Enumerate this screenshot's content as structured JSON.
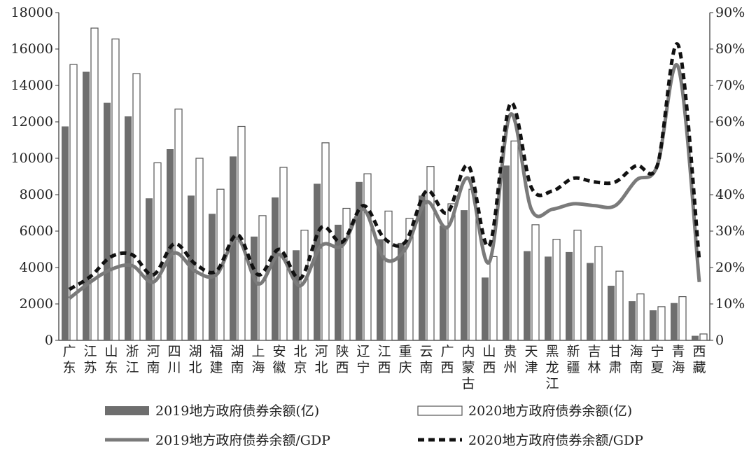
{
  "chart_data": {
    "type": "bar",
    "categories": [
      "广东",
      "江苏",
      "山东",
      "浙江",
      "河南",
      "四川",
      "湖北",
      "福建",
      "湖南",
      "上海",
      "安徽",
      "北京",
      "河北",
      "陕西",
      "辽宁",
      "江西",
      "重庆",
      "云南",
      "广西",
      "内蒙古",
      "山西",
      "贵州",
      "天津",
      "黑龙江",
      "新疆",
      "吉林",
      "甘肃",
      "海南",
      "宁夏",
      "青海",
      "西藏"
    ],
    "series": [
      {
        "name": "2019地方政府债券余额(亿)",
        "kind": "bar",
        "axis": "left",
        "color": "#6e6e6e",
        "values": [
          11750,
          14750,
          13050,
          12300,
          7800,
          10500,
          7950,
          6950,
          10100,
          5700,
          7850,
          4950,
          8600,
          6350,
          8700,
          5550,
          5350,
          7950,
          6300,
          7150,
          3450,
          9600,
          4900,
          4600,
          4850,
          4250,
          3000,
          2150,
          1650,
          2050,
          250
        ]
      },
      {
        "name": "2020地方政府债券余额(亿)",
        "kind": "bar",
        "axis": "left",
        "color": "#ffffff",
        "values": [
          15150,
          17150,
          16550,
          14650,
          9750,
          12700,
          10000,
          8300,
          11750,
          6850,
          9500,
          6050,
          10850,
          7250,
          9150,
          7100,
          6700,
          9550,
          7500,
          8300,
          4600,
          10950,
          6350,
          5550,
          6050,
          5150,
          3800,
          2550,
          1850,
          2400,
          350
        ]
      },
      {
        "name": "2019地方政府债券余额/GDP",
        "kind": "line",
        "axis": "right",
        "color": "#7a7a7a",
        "values": [
          11.5,
          16,
          19.5,
          20.5,
          16,
          24,
          19,
          18,
          28,
          15.5,
          23.5,
          15,
          26,
          26,
          36,
          22.5,
          25,
          38,
          31,
          44.5,
          21.5,
          62,
          36,
          36,
          37.5,
          37,
          37,
          44,
          48,
          75,
          16
        ]
      },
      {
        "name": "2020地方政府债券余额/GDP",
        "kind": "line",
        "axis": "right",
        "color": "#111111",
        "values": [
          14,
          17.5,
          23,
          23.5,
          18,
          26.5,
          21,
          19,
          29,
          18,
          25,
          17,
          31,
          27,
          37,
          28,
          27,
          41,
          35,
          48,
          26,
          65,
          42,
          41,
          44.5,
          43.5,
          43.5,
          48,
          48,
          81,
          22
        ]
      }
    ],
    "yaxis_left": {
      "min": 0,
      "max": 18000,
      "step": 2000,
      "ticks": [
        "0",
        "2000",
        "4000",
        "6000",
        "8000",
        "10000",
        "12000",
        "14000",
        "16000",
        "18000"
      ]
    },
    "yaxis_right": {
      "min": 0,
      "max": 90,
      "step": 10,
      "ticks": [
        "0",
        "10%",
        "20%",
        "30%",
        "40%",
        "50%",
        "60%",
        "70%",
        "80%",
        "90%"
      ]
    },
    "legend_position": "bottom",
    "grid": false,
    "title": "",
    "xlabel": "",
    "ylabel": ""
  }
}
